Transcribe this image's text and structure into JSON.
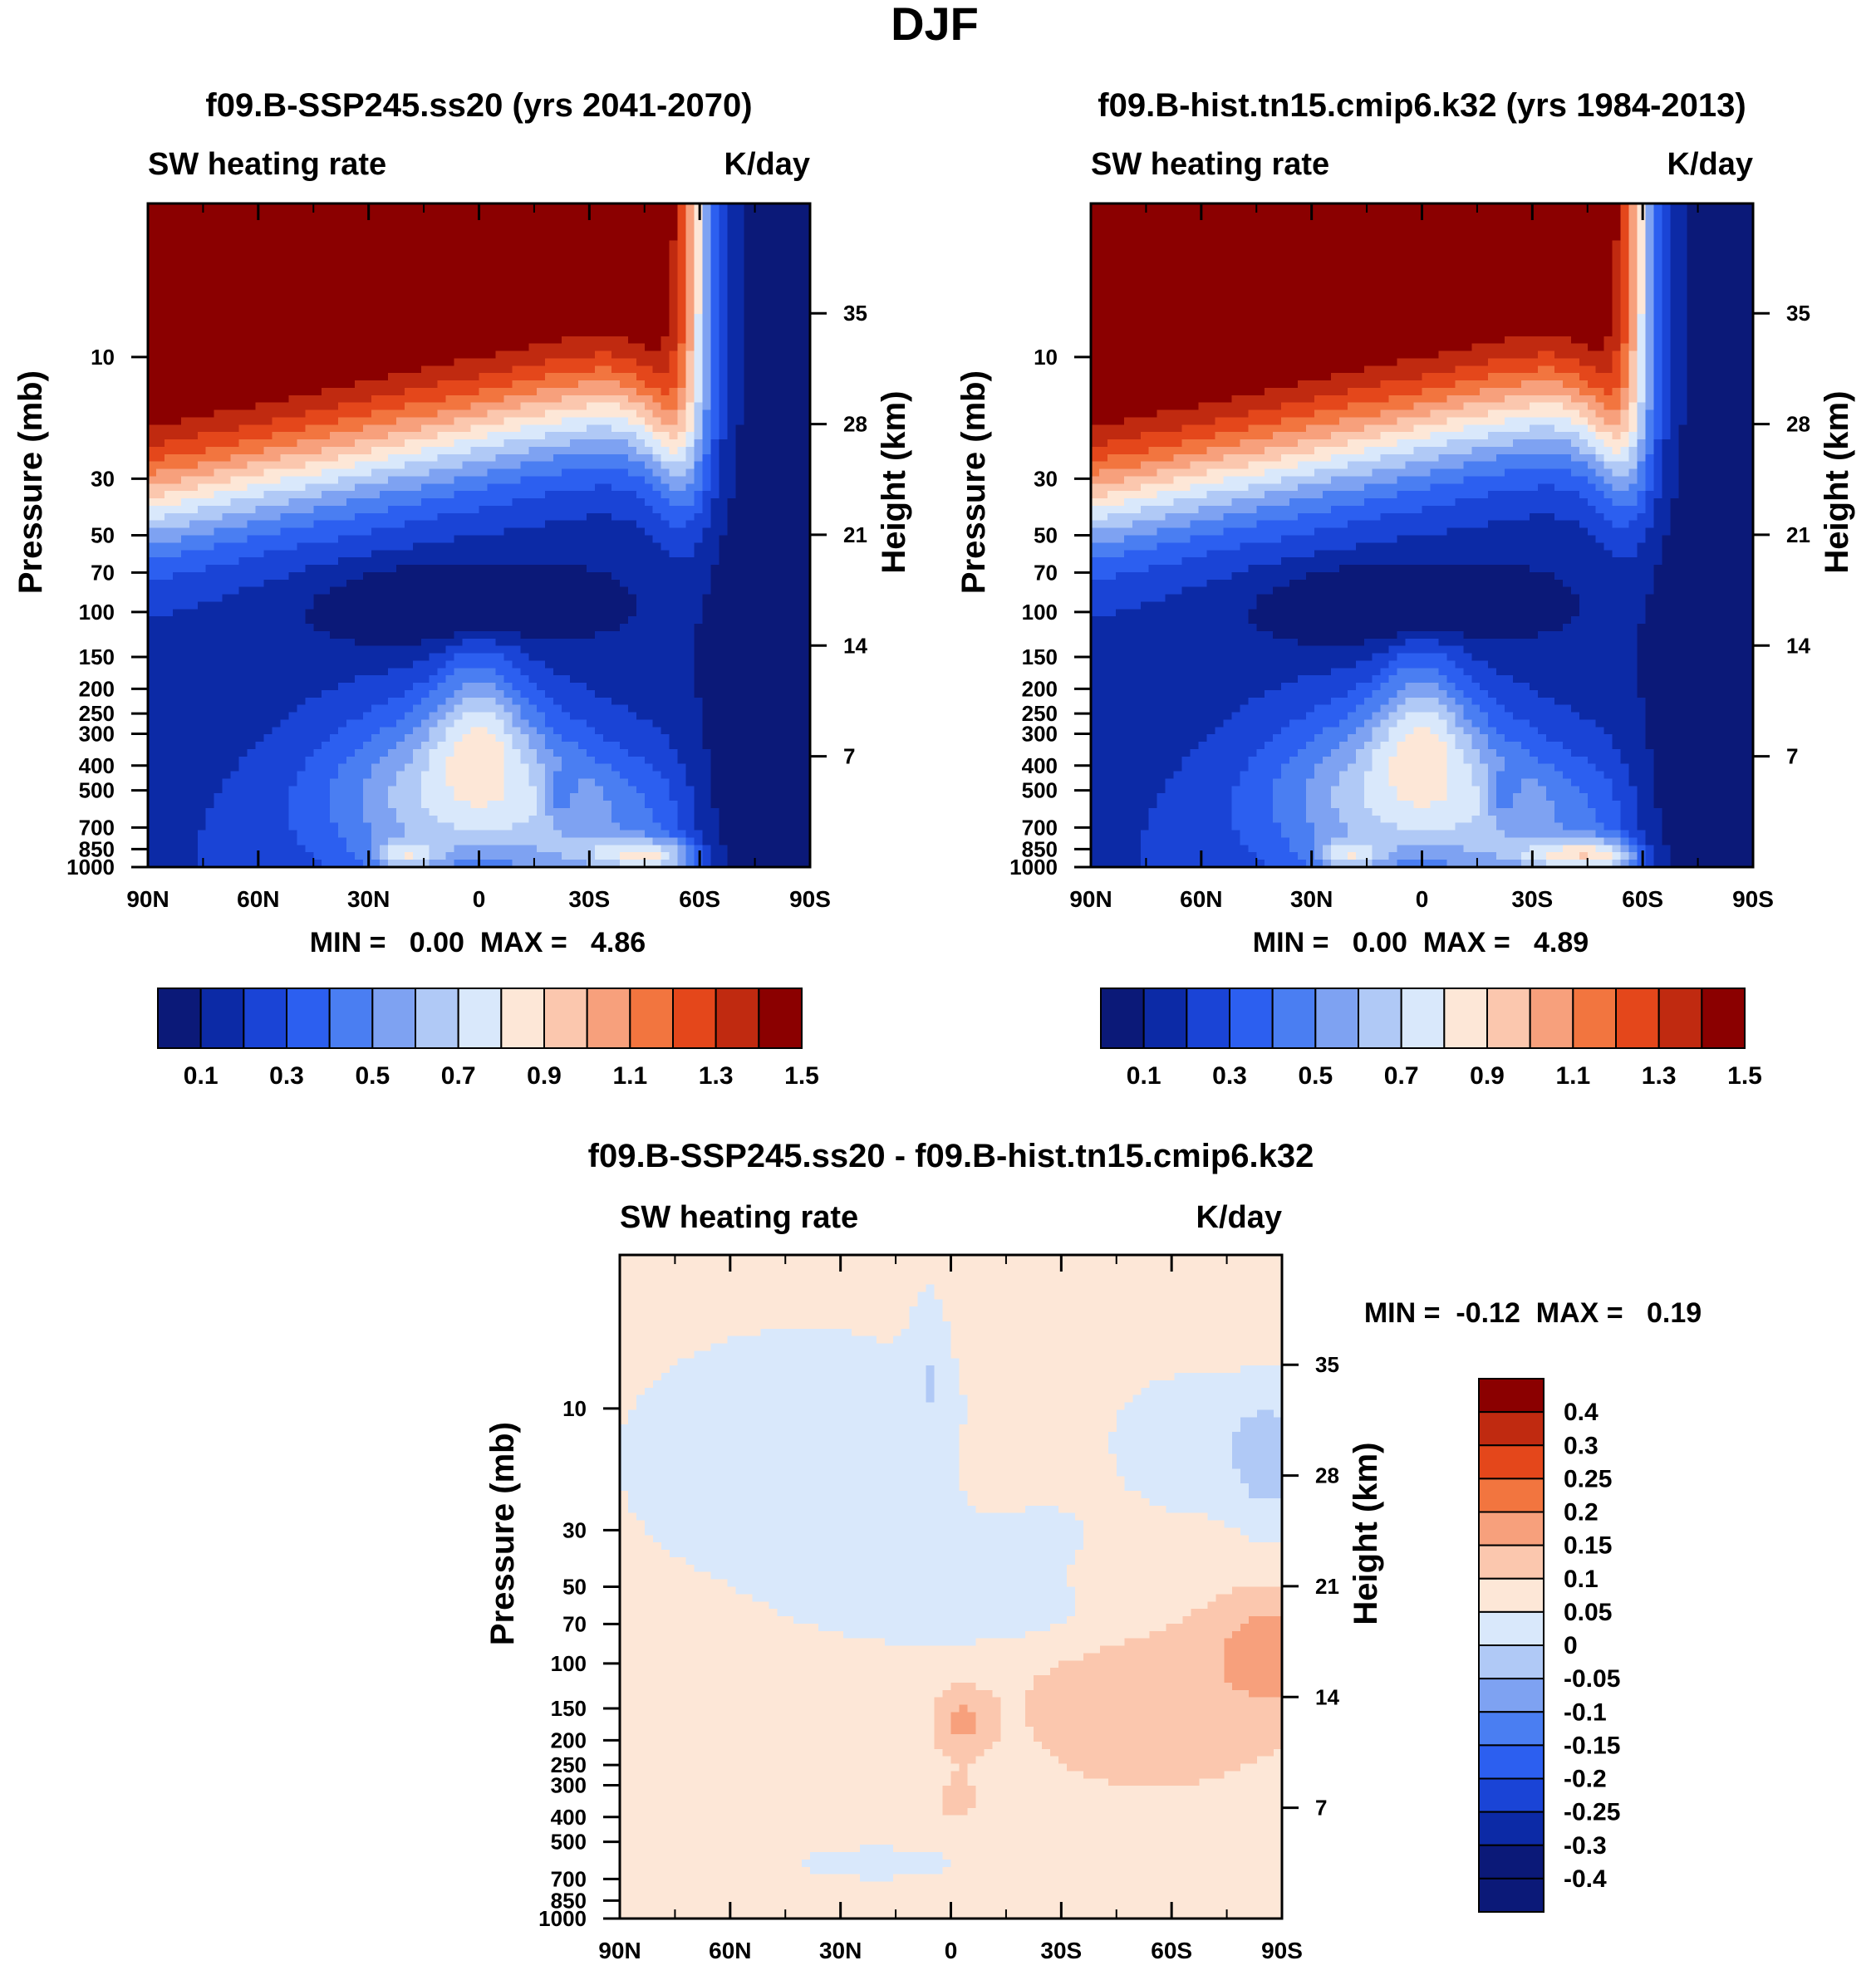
{
  "page_title": "DJF",
  "chart_data": [
    {
      "type": "heatmap",
      "title": "f09.B-SSP245.ss20 (yrs 2041-2070)",
      "left_label": "SW heating rate",
      "right_label": "K/day",
      "xlabel": "",
      "ylabel": "Pressure (mb)",
      "y2label": "Height (km)",
      "x_ticks": [
        "90N",
        "60N",
        "30N",
        "0",
        "30S",
        "60S",
        "90S"
      ],
      "x_values": [
        90,
        60,
        30,
        0,
        -30,
        -60,
        -90
      ],
      "y_ticks": [
        "10",
        "30",
        "50",
        "70",
        "100",
        "150",
        "200",
        "250",
        "300",
        "400",
        "500",
        "700",
        "850",
        "1000"
      ],
      "y_values": [
        10,
        30,
        50,
        70,
        100,
        150,
        200,
        250,
        300,
        400,
        500,
        700,
        850,
        1000
      ],
      "y2_ticks": [
        "35",
        "28",
        "21",
        "14",
        "7"
      ],
      "y2_values": [
        35,
        28,
        21,
        14,
        7
      ],
      "ylim": [
        1000,
        2.5
      ],
      "min_max_text": "MIN =   0.00  MAX =   4.86",
      "min": 0.0,
      "max": 4.86,
      "field": "seq",
      "colorbar_labels": [
        "0.1",
        "0.3",
        "0.5",
        "0.7",
        "0.9",
        "1.1",
        "1.3",
        "1.5"
      ],
      "colorbar_levels": [
        0.1,
        0.2,
        0.3,
        0.4,
        0.5,
        0.6,
        0.7,
        0.8,
        0.9,
        1.0,
        1.1,
        1.2,
        1.3,
        1.4,
        1.5
      ]
    },
    {
      "type": "heatmap",
      "title": "f09.B-hist.tn15.cmip6.k32 (yrs 1984-2013)",
      "left_label": "SW heating rate",
      "right_label": "K/day",
      "xlabel": "",
      "ylabel": "Pressure (mb)",
      "y2label": "Height (km)",
      "x_ticks": [
        "90N",
        "60N",
        "30N",
        "0",
        "30S",
        "60S",
        "90S"
      ],
      "x_values": [
        90,
        60,
        30,
        0,
        -30,
        -60,
        -90
      ],
      "y_ticks": [
        "10",
        "30",
        "50",
        "70",
        "100",
        "150",
        "200",
        "250",
        "300",
        "400",
        "500",
        "700",
        "850",
        "1000"
      ],
      "y_values": [
        10,
        30,
        50,
        70,
        100,
        150,
        200,
        250,
        300,
        400,
        500,
        700,
        850,
        1000
      ],
      "y2_ticks": [
        "35",
        "28",
        "21",
        "14",
        "7"
      ],
      "y2_values": [
        35,
        28,
        21,
        14,
        7
      ],
      "ylim": [
        1000,
        2.5
      ],
      "min_max_text": "MIN =   0.00  MAX =   4.89",
      "min": 0.0,
      "max": 4.89,
      "field": "seq",
      "colorbar_labels": [
        "0.1",
        "0.3",
        "0.5",
        "0.7",
        "0.9",
        "1.1",
        "1.3",
        "1.5"
      ],
      "colorbar_levels": [
        0.1,
        0.2,
        0.3,
        0.4,
        0.5,
        0.6,
        0.7,
        0.8,
        0.9,
        1.0,
        1.1,
        1.2,
        1.3,
        1.4,
        1.5
      ]
    },
    {
      "type": "heatmap",
      "title": "f09.B-SSP245.ss20 - f09.B-hist.tn15.cmip6.k32",
      "left_label": "SW heating rate",
      "right_label": "K/day",
      "xlabel": "",
      "ylabel": "Pressure (mb)",
      "y2label": "Height (km)",
      "x_ticks": [
        "90N",
        "60N",
        "30N",
        "0",
        "30S",
        "60S",
        "90S"
      ],
      "x_values": [
        90,
        60,
        30,
        0,
        -30,
        -60,
        -90
      ],
      "y_ticks": [
        "10",
        "30",
        "50",
        "70",
        "100",
        "150",
        "200",
        "250",
        "300",
        "400",
        "500",
        "700",
        "850",
        "1000"
      ],
      "y_values": [
        10,
        30,
        50,
        70,
        100,
        150,
        200,
        250,
        300,
        400,
        500,
        700,
        850,
        1000
      ],
      "y2_ticks": [
        "35",
        "28",
        "21",
        "14",
        "7"
      ],
      "y2_values": [
        35,
        28,
        21,
        14,
        7
      ],
      "ylim": [
        1000,
        2.5
      ],
      "min_max_text": "MIN =  -0.12  MAX =   0.19",
      "min": -0.12,
      "max": 0.19,
      "field": "diff",
      "colorbar_labels": [
        "0.4",
        "0.3",
        "0.25",
        "0.2",
        "0.15",
        "0.1",
        "0.05",
        "0",
        "-0.05",
        "-0.1",
        "-0.15",
        "-0.2",
        "-0.25",
        "-0.3",
        "-0.4"
      ],
      "colorbar_levels": [
        0.4,
        0.3,
        0.25,
        0.2,
        0.15,
        0.1,
        0.05,
        0,
        -0.05,
        -0.1,
        -0.15,
        -0.2,
        -0.25,
        -0.3,
        -0.4
      ]
    }
  ],
  "colors": {
    "palette": [
      "#0b1978",
      "#0c2aa6",
      "#1a44d6",
      "#2c5ff0",
      "#4a7ef2",
      "#7ea2f2",
      "#b0c9f6",
      "#d9e8fb",
      "#fde7d7",
      "#fbc7ae",
      "#f7a07c",
      "#f2753f",
      "#e4471b",
      "#c02a10",
      "#8b0000"
    ],
    "diff_palette": [
      "#0b1978",
      "#0c2aa6",
      "#1a44d6",
      "#2c5ff0",
      "#4a7ef2",
      "#7ea2f2",
      "#b0c9f6",
      "#d9e8fb",
      "#fde7d7",
      "#fbc7ae",
      "#f7a07c",
      "#f2753f",
      "#e4471b",
      "#c02a10",
      "#8b0000"
    ]
  }
}
